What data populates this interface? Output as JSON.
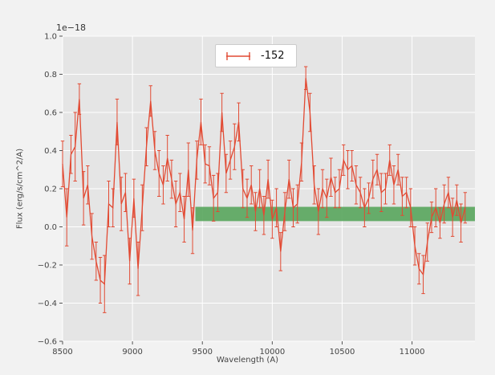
{
  "figure": {
    "figure_bg": "#f2f2f2",
    "axes_bg": "#e5e5e5",
    "grid_color": "#ffffff",
    "tick_color": "#555555",
    "text_color": "#444444"
  },
  "chart_data": {
    "type": "line",
    "style": "errorbar",
    "title": "",
    "offset_text": "1e−18",
    "xlabel": "Wavelength (A)",
    "ylabel": "Flux (erg/s/cm^2/A)",
    "legend_label": "-152",
    "line_color": "#e24a33",
    "xlim": [
      8500,
      11450
    ],
    "ylim": [
      -0.6,
      1.0
    ],
    "xticks": [
      8500,
      9000,
      9500,
      10000,
      10500,
      11000
    ],
    "xtick_labels": [
      "8500",
      "9000",
      "9500",
      "10000",
      "10500",
      "11000"
    ],
    "yticks": [
      -0.6,
      -0.4,
      -0.2,
      0.0,
      0.2,
      0.4,
      0.6,
      0.8,
      1.0
    ],
    "ytick_labels": [
      "−0.6",
      "−0.4",
      "−0.2",
      "0.0",
      "0.2",
      "0.4",
      "0.6",
      "0.8",
      "1.0"
    ],
    "grid": true,
    "legend_position": "upper center",
    "band": {
      "x0": 9450,
      "x1": 11450,
      "y0": 0.03,
      "y1": 0.105,
      "color": "#58a55c",
      "opacity": 0.9
    },
    "x": [
      8500,
      8530,
      8560,
      8590,
      8620,
      8650,
      8680,
      8710,
      8740,
      8770,
      8800,
      8830,
      8860,
      8890,
      8920,
      8950,
      8980,
      9010,
      9040,
      9070,
      9100,
      9130,
      9160,
      9190,
      9220,
      9250,
      9280,
      9310,
      9340,
      9370,
      9400,
      9430,
      9460,
      9490,
      9520,
      9550,
      9580,
      9610,
      9640,
      9670,
      9700,
      9730,
      9760,
      9790,
      9820,
      9850,
      9880,
      9910,
      9940,
      9970,
      10000,
      10030,
      10060,
      10090,
      10120,
      10150,
      10180,
      10210,
      10240,
      10270,
      10300,
      10330,
      10360,
      10390,
      10420,
      10450,
      10480,
      10510,
      10540,
      10570,
      10600,
      10630,
      10660,
      10690,
      10720,
      10750,
      10780,
      10810,
      10840,
      10870,
      10900,
      10930,
      10960,
      10990,
      11020,
      11050,
      11080,
      11110,
      11140,
      11170,
      11200,
      11230,
      11260,
      11290,
      11320,
      11350,
      11380
    ],
    "y": [
      0.33,
      0.05,
      0.38,
      0.42,
      0.67,
      0.15,
      0.22,
      -0.05,
      -0.18,
      -0.28,
      -0.3,
      0.12,
      0.1,
      0.55,
      0.12,
      0.18,
      -0.18,
      0.15,
      -0.22,
      0.1,
      0.42,
      0.66,
      0.4,
      0.28,
      0.22,
      0.36,
      0.25,
      0.12,
      0.18,
      0.04,
      0.3,
      -0.02,
      0.35,
      0.55,
      0.33,
      0.32,
      0.15,
      0.18,
      0.6,
      0.28,
      0.35,
      0.42,
      0.55,
      0.2,
      0.15,
      0.22,
      0.08,
      0.2,
      0.06,
      0.25,
      0.04,
      0.1,
      -0.13,
      0.08,
      0.25,
      0.1,
      0.12,
      0.34,
      0.78,
      0.6,
      0.22,
      0.08,
      0.2,
      0.15,
      0.26,
      0.18,
      0.2,
      0.35,
      0.3,
      0.32,
      0.22,
      0.18,
      0.1,
      0.15,
      0.25,
      0.3,
      0.18,
      0.2,
      0.35,
      0.22,
      0.3,
      0.16,
      0.18,
      0.1,
      -0.1,
      -0.22,
      -0.25,
      -0.08,
      0.05,
      0.1,
      0.02,
      0.12,
      0.18,
      0.05,
      0.14,
      0.02,
      0.1
    ],
    "yerr": [
      0.12,
      0.15,
      0.1,
      0.18,
      0.08,
      0.14,
      0.1,
      0.12,
      0.1,
      0.12,
      0.15,
      0.12,
      0.1,
      0.12,
      0.14,
      0.1,
      0.12,
      0.1,
      0.14,
      0.12,
      0.1,
      0.08,
      0.1,
      0.12,
      0.1,
      0.12,
      0.1,
      0.12,
      0.1,
      0.12,
      0.14,
      0.12,
      0.1,
      0.12,
      0.1,
      0.1,
      0.12,
      0.1,
      0.1,
      0.1,
      0.1,
      0.12,
      0.1,
      0.1,
      0.1,
      0.1,
      0.1,
      0.1,
      0.1,
      0.1,
      0.1,
      0.1,
      0.1,
      0.1,
      0.1,
      0.1,
      0.1,
      0.1,
      0.06,
      0.1,
      0.1,
      0.12,
      0.1,
      0.1,
      0.1,
      0.08,
      0.1,
      0.08,
      0.1,
      0.08,
      0.1,
      0.08,
      0.1,
      0.08,
      0.1,
      0.08,
      0.1,
      0.08,
      0.08,
      0.1,
      0.08,
      0.1,
      0.08,
      0.1,
      0.1,
      0.08,
      0.1,
      0.1,
      0.08,
      0.1,
      0.08,
      0.1,
      0.08,
      0.1,
      0.08,
      0.1,
      0.08
    ]
  }
}
